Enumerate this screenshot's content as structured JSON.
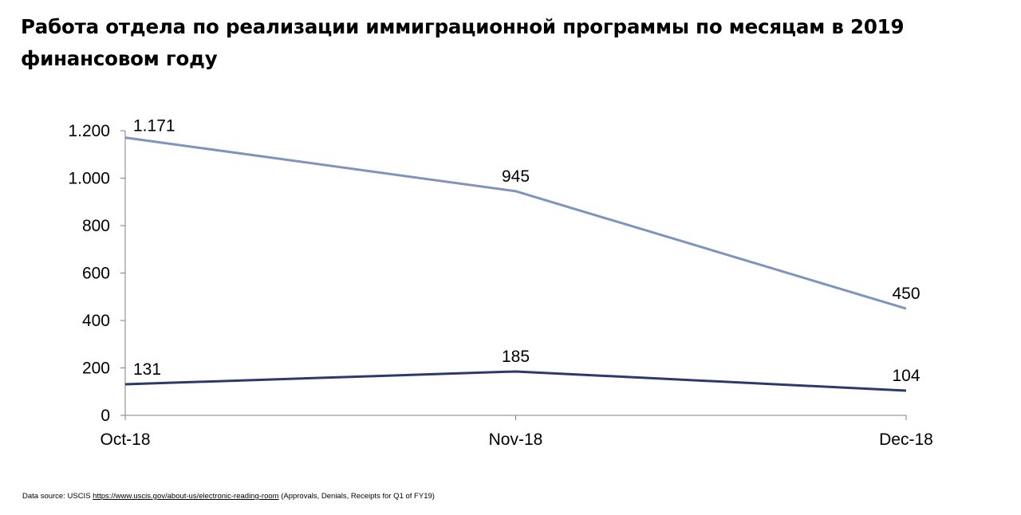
{
  "chart_data": {
    "type": "line",
    "title": "Работа отдела по реализации иммиграционной программы по месяцам в 2019 финансовом году",
    "categories": [
      "Oct-18",
      "Nov-18",
      "Dec-18"
    ],
    "series": [
      {
        "values": [
          1171,
          945,
          450
        ],
        "labels": [
          "1.171",
          "945",
          "450"
        ],
        "color": "#7f93bf"
      },
      {
        "values": [
          131,
          185,
          104
        ],
        "labels": [
          "131",
          "185",
          "104"
        ],
        "color": "#2b3a6b"
      }
    ],
    "y_ticks": [
      0,
      200,
      400,
      600,
      800,
      1000,
      1200
    ],
    "y_tick_labels": [
      "0",
      "200",
      "400",
      "600",
      "800",
      "1.000",
      "1.200"
    ],
    "ylim": [
      0,
      1200
    ],
    "grid": false,
    "legend": "none"
  },
  "footer": {
    "prefix": "Data source: USCIS ",
    "link_text": "https://www.uscis.gov/about-us/electronic-reading-room",
    "mid": " (Approvals, Denials",
    "suffix": ", Receipts for Q1 of FY19)"
  }
}
